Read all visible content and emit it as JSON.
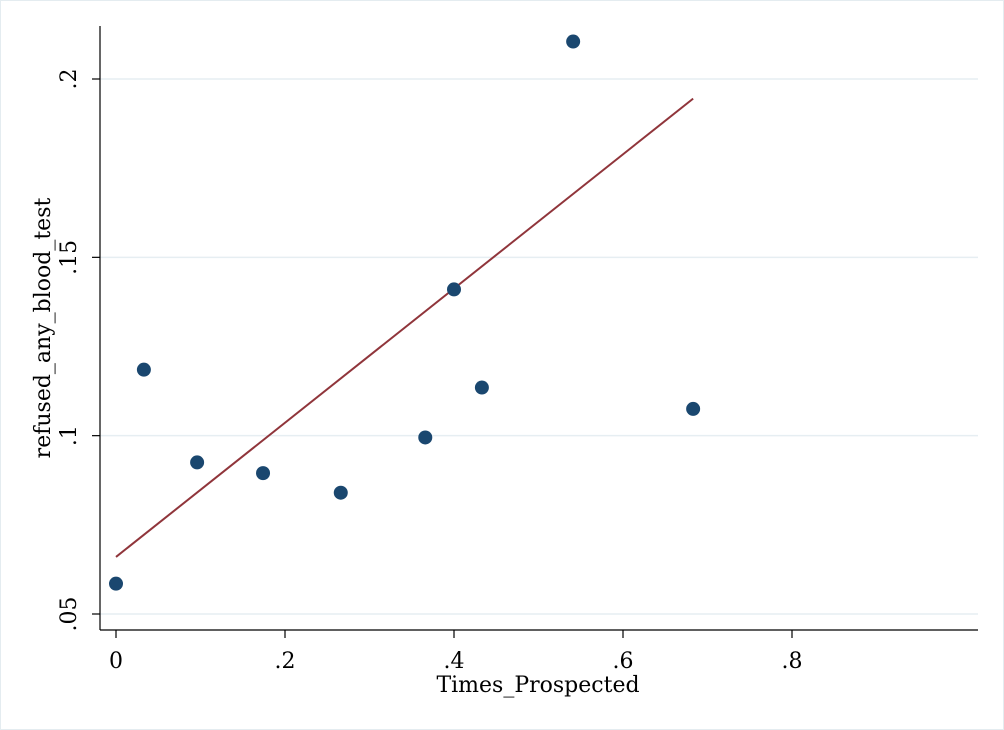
{
  "chart_data": {
    "type": "scatter",
    "title": "",
    "xlabel": "Times_Prospected",
    "ylabel": "refused_any_blood_test",
    "xlim": [
      -0.008,
      0.8
    ],
    "ylim": [
      0.05,
      0.215
    ],
    "x_ticks": [
      0,
      0.2,
      0.4,
      0.6,
      0.8
    ],
    "x_tick_labels": [
      "0",
      ".2",
      ".4",
      ".6",
      ".8"
    ],
    "y_ticks": [
      0.05,
      0.1,
      0.15,
      0.2
    ],
    "y_tick_labels": [
      ".05",
      ".1",
      ".15",
      ".2"
    ],
    "grid": "horizontal",
    "legend": "none",
    "series": [
      {
        "type": "scatter",
        "color": "#1a476f",
        "points": [
          {
            "x": 0.0,
            "y": 0.0585
          },
          {
            "x": 0.033,
            "y": 0.1185
          },
          {
            "x": 0.096,
            "y": 0.0925
          },
          {
            "x": 0.174,
            "y": 0.0895
          },
          {
            "x": 0.266,
            "y": 0.084
          },
          {
            "x": 0.366,
            "y": 0.0995
          },
          {
            "x": 0.4,
            "y": 0.141
          },
          {
            "x": 0.433,
            "y": 0.1135
          },
          {
            "x": 0.541,
            "y": 0.2105
          },
          {
            "x": 0.683,
            "y": 0.1075
          }
        ]
      },
      {
        "type": "line",
        "color": "#90353b",
        "points": [
          {
            "x": 0.0,
            "y": 0.066
          },
          {
            "x": 0.683,
            "y": 0.1945
          }
        ]
      }
    ]
  }
}
